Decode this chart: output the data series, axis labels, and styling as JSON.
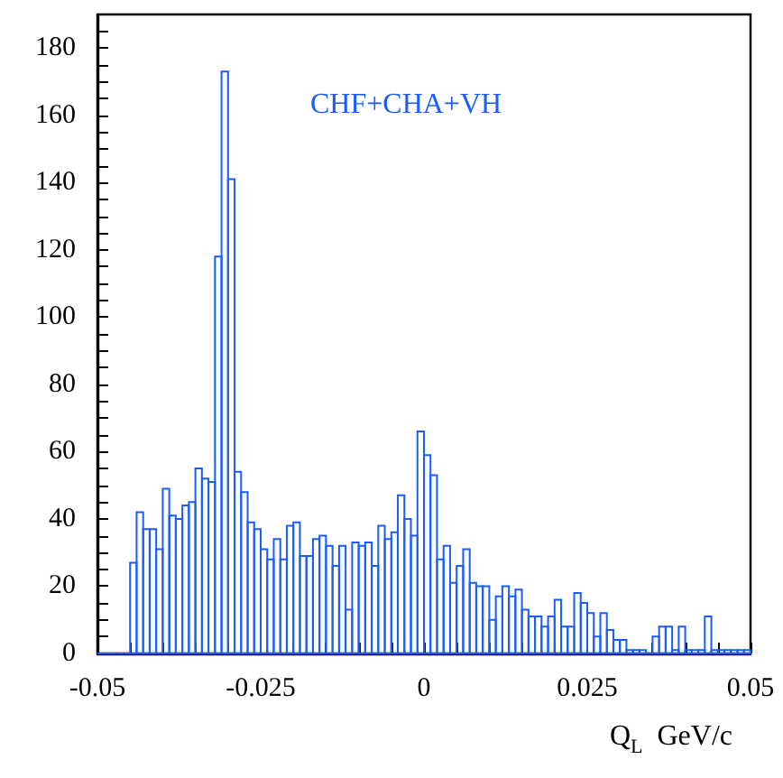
{
  "chart_data": {
    "type": "histogram",
    "xlabel": "Q$_{L}$  GeV/c",
    "annotations": [
      "CHF+CHA+VH"
    ],
    "color": "#1a5cff",
    "bins": [
      -0.05,
      -0.049,
      -0.048,
      -0.047,
      -0.046,
      -0.045,
      -0.044,
      -0.043,
      -0.042,
      -0.041,
      -0.04,
      -0.039,
      -0.038,
      -0.037,
      -0.036,
      -0.035,
      -0.034,
      -0.033,
      -0.032,
      -0.031,
      -0.03,
      -0.029,
      -0.028,
      -0.027,
      -0.026,
      -0.025,
      -0.024,
      -0.023,
      -0.022,
      -0.021,
      -0.02,
      -0.019,
      -0.018,
      -0.017,
      -0.016,
      -0.015,
      -0.014,
      -0.013,
      -0.012,
      -0.011,
      -0.01,
      -0.009,
      -0.008,
      -0.007,
      -0.006,
      -0.005,
      -0.004,
      -0.003,
      -0.002,
      -0.001,
      0,
      0.001,
      0.002,
      0.003,
      0.004,
      0.005,
      0.006,
      0.007,
      0.008,
      0.009,
      0.01,
      0.011,
      0.012,
      0.013,
      0.014,
      0.015,
      0.016,
      0.017,
      0.018,
      0.019,
      0.02,
      0.021,
      0.022,
      0.023,
      0.024,
      0.025,
      0.026,
      0.027,
      0.028,
      0.029,
      0.03,
      0.031,
      0.032,
      0.033,
      0.034,
      0.035,
      0.036,
      0.037,
      0.038,
      0.039,
      0.04,
      0.041,
      0.042,
      0.043,
      0.044,
      0.045,
      0.046,
      0.047,
      0.048,
      0.049,
      0.05
    ],
    "values": [
      0,
      0,
      0,
      0,
      0,
      27,
      42,
      37,
      37,
      31,
      49,
      41,
      40,
      44,
      45,
      55,
      52,
      51,
      118,
      173,
      141,
      54,
      48,
      39,
      37,
      31,
      28,
      34,
      28,
      38,
      39,
      29,
      29,
      34,
      35,
      32,
      26,
      32,
      13,
      33,
      32,
      33,
      26,
      38,
      34,
      36,
      47,
      40,
      35,
      66,
      59,
      53,
      28,
      32,
      21,
      26,
      31,
      21,
      20,
      20,
      10,
      17,
      20,
      17,
      19,
      13,
      11,
      11,
      8,
      11,
      16,
      8,
      8,
      18,
      15,
      12,
      5,
      12,
      7,
      4,
      4,
      1,
      1,
      1,
      0,
      5,
      8,
      8,
      1,
      8,
      1,
      1,
      1,
      11,
      1,
      1,
      1,
      1,
      1,
      1
    ],
    "xlim": [
      -0.05,
      0.05
    ],
    "xticks": [
      -0.05,
      {
        "value": -0.045,
        "label": null
      },
      {
        "value": -0.04,
        "label": null
      },
      {
        "value": -0.035,
        "label": null
      },
      {
        "value": -0.03,
        "label": null
      },
      -0.025,
      {
        "value": -0.02,
        "label": null
      },
      {
        "value": -0.015,
        "label": null
      },
      {
        "value": -0.01,
        "label": null
      },
      {
        "value": -0.005,
        "label": null
      },
      0,
      {
        "value": 0.005,
        "label": null
      },
      {
        "value": 0.01,
        "label": null
      },
      {
        "value": 0.015,
        "label": null
      },
      {
        "value": 0.02,
        "label": null
      },
      0.025,
      {
        "value": 0.03,
        "label": null
      },
      {
        "value": 0.035,
        "label": null
      },
      {
        "value": 0.04,
        "label": null
      },
      {
        "value": 0.045,
        "label": null
      },
      0.05
    ],
    "ylim": [
      0,
      190
    ],
    "yticks": [
      0,
      {
        "value": 5,
        "label": null
      },
      {
        "value": 10,
        "label": null
      },
      {
        "value": 15,
        "label": null
      },
      20,
      {
        "value": 25,
        "label": null
      },
      {
        "value": 30,
        "label": null
      },
      {
        "value": 35,
        "label": null
      },
      40,
      {
        "value": 45,
        "label": null
      },
      {
        "value": 50,
        "label": null
      },
      {
        "value": 55,
        "label": null
      },
      60,
      {
        "value": 65,
        "label": null
      },
      {
        "value": 70,
        "label": null
      },
      {
        "value": 75,
        "label": null
      },
      80,
      {
        "value": 85,
        "label": null
      },
      {
        "value": 90,
        "label": null
      },
      {
        "value": 95,
        "label": null
      },
      100,
      {
        "value": 105,
        "label": null
      },
      {
        "value": 110,
        "label": null
      },
      {
        "value": 115,
        "label": null
      },
      120,
      {
        "value": 125,
        "label": null
      },
      {
        "value": 130,
        "label": null
      },
      {
        "value": 135,
        "label": null
      },
      140,
      {
        "value": 145,
        "label": null
      },
      {
        "value": 150,
        "label": null
      },
      {
        "value": 155,
        "label": null
      },
      160,
      {
        "value": 165,
        "label": null
      },
      {
        "value": 170,
        "label": null
      },
      {
        "value": 175,
        "label": null
      },
      180,
      {
        "value": 185,
        "label": null
      }
    ],
    "grid": false,
    "legend": false
  }
}
